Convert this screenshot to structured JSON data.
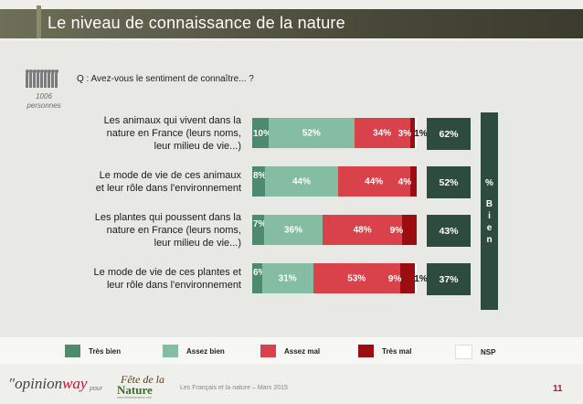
{
  "header": {
    "title": "Le niveau de connaissance de la nature"
  },
  "sample": {
    "count": "1006",
    "unit": "personnes"
  },
  "question": "Q : Avez-vous le sentiment de connaître... ?",
  "chart_data": {
    "type": "bar",
    "orientation": "horizontal",
    "stacked": true,
    "categories": [
      "Les animaux qui vivent dans la nature en France (leurs noms, leur milieu de vie...)",
      "Le mode de vie de ces animaux et leur rôle dans l'environnement",
      "Les plantes qui poussent dans la nature en France (leurs noms, leur milieu de vie...)",
      "Le mode de vie de ces plantes et leur rôle dans l'environnement"
    ],
    "category_lines": [
      [
        "Les animaux qui vivent dans la",
        "nature en France (leurs noms,",
        "leur milieu de vie...)"
      ],
      [
        "Le mode de vie de ces animaux",
        "et leur rôle dans l'environnement"
      ],
      [
        "Les plantes qui poussent dans la",
        "nature en France (leurs noms,",
        "leur milieu de vie...)"
      ],
      [
        "Le mode de vie de ces plantes et",
        "leur rôle dans l'environnement"
      ]
    ],
    "series": [
      {
        "name": "Très bien",
        "color": "#4d8a6e",
        "values": [
          10,
          8,
          7,
          6
        ],
        "labels": [
          "10%",
          "8%",
          "7%",
          "6%"
        ]
      },
      {
        "name": "Assez bien",
        "color": "#85bda3",
        "values": [
          52,
          44,
          36,
          31
        ],
        "labels": [
          "52%",
          "44%",
          "36%",
          "31%"
        ]
      },
      {
        "name": "Assez mal",
        "color": "#d9414b",
        "values": [
          34,
          44,
          48,
          53
        ],
        "labels": [
          "34%",
          "44%",
          "48%",
          "53%"
        ]
      },
      {
        "name": "Très mal",
        "color": "#9c0d12",
        "values": [
          3,
          4,
          9,
          9
        ],
        "labels": [
          "3%",
          "4%",
          "9%",
          "9%"
        ]
      },
      {
        "name": "NSP",
        "color": "#ffffff",
        "values": [
          1,
          0,
          0,
          1
        ],
        "labels": [
          "1%",
          "",
          "",
          "1%"
        ]
      }
    ],
    "totals": {
      "name": "% Bien",
      "values": [
        62,
        52,
        43,
        37
      ],
      "labels": [
        "62%",
        "52%",
        "43%",
        "37%"
      ]
    },
    "xlim": [
      0,
      100
    ]
  },
  "legend": [
    "Très bien",
    "Assez bien",
    "Assez mal",
    "Très mal",
    "NSP"
  ],
  "band": {
    "chars": [
      "%",
      "B",
      "i",
      "e",
      "n"
    ]
  },
  "footer": {
    "logo_left": "\"opinion",
    "logo_right": "way",
    "pour": "pour",
    "fete_line1": "Fête de la",
    "fete_line2": "Nature",
    "fete_url": "www.fetedelanature.com",
    "text": "Les Français et la nature – Mars 2015",
    "page": "11"
  }
}
